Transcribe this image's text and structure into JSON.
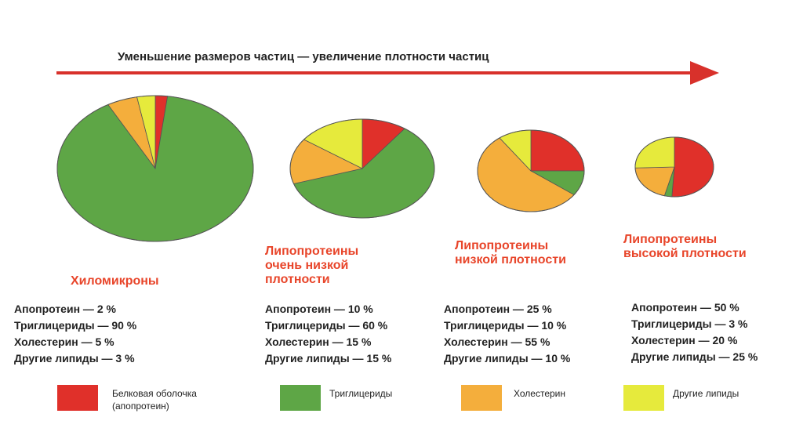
{
  "header": {
    "title": "Уменьшение размеров частиц — увеличение плотности частиц"
  },
  "legend": {
    "items": [
      {
        "name": "Белковая оболочка (апопротеин)",
        "color": "#e0302a"
      },
      {
        "name": "Триглицериды",
        "color": "#5ea646"
      },
      {
        "name": "Холестерин",
        "color": "#f4ae3c"
      },
      {
        "name": "Другие липиды",
        "color": "#e6ea3c"
      }
    ]
  },
  "chart_data": [
    {
      "type": "pie",
      "title": "Хиломикроны",
      "values": [
        2,
        90,
        5,
        3
      ],
      "value_labels": [
        "Апопротеин — 2 %",
        "Триглицериды — 90 %",
        "Холестерин — 5 %",
        "Другие липиды — 3 %"
      ]
    },
    {
      "type": "pie",
      "title": "Липопротеины очень низкой плотности",
      "values": [
        10,
        60,
        15,
        15
      ],
      "value_labels": [
        "Апопротеин — 10 %",
        "Триглицериды — 60 %",
        "Холестерин — 15 %",
        "Другие липиды — 15 %"
      ]
    },
    {
      "type": "pie",
      "title": "Липопротеины низкой плотности",
      "values": [
        25,
        10,
        55,
        10
      ],
      "value_labels": [
        "Апопротеин — 25 %",
        "Триглицериды — 10 %",
        "Холестерин — 55 %",
        "Другие липиды — 10 %"
      ]
    },
    {
      "type": "pie",
      "title": "Липопротеины высокой плотности",
      "values": [
        50,
        3,
        20,
        25
      ],
      "value_labels": [
        "Апопротеин — 50 %",
        "Триглицериды — 3 %",
        "Холестерин — 20 %",
        "Другие липиды — 25 %"
      ]
    }
  ]
}
